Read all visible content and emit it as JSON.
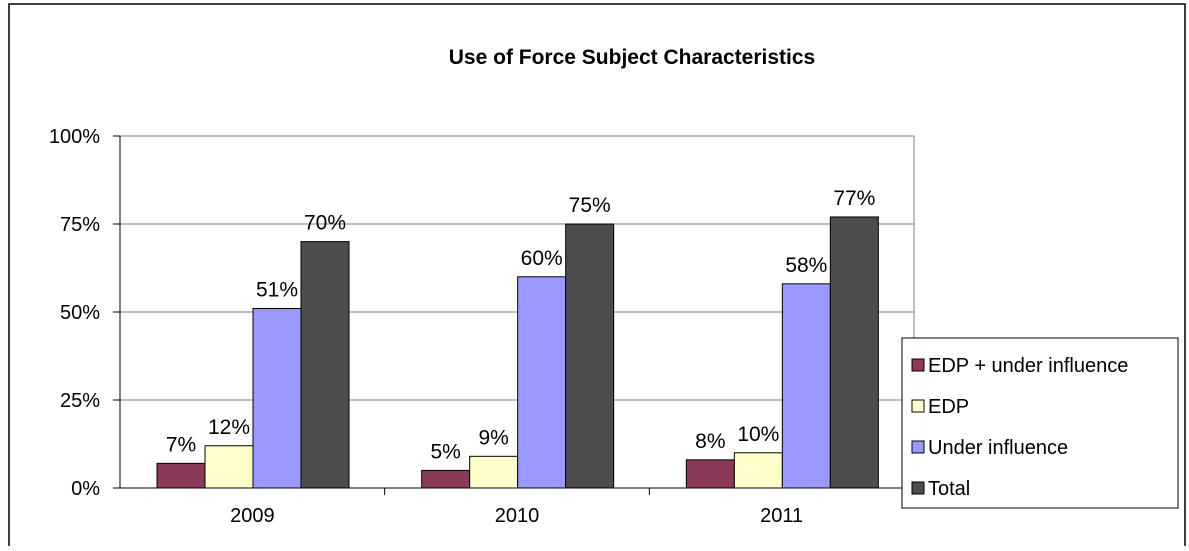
{
  "chart_data": {
    "type": "bar",
    "title": "Use of Force Subject Characteristics",
    "xlabel": "",
    "ylabel": "",
    "categories": [
      "2009",
      "2010",
      "2011"
    ],
    "ylim": [
      0,
      100
    ],
    "yticks": [
      "0%",
      "25%",
      "50%",
      "75%",
      "100%"
    ],
    "grid": true,
    "legend_position": "right",
    "series": [
      {
        "name": "EDP + under influence",
        "color": "#8B3A5A",
        "values": [
          7,
          5,
          8
        ],
        "labels": [
          "7%",
          "5%",
          "8%"
        ]
      },
      {
        "name": "EDP",
        "color": "#FFFFCC",
        "values": [
          12,
          9,
          10
        ],
        "labels": [
          "12%",
          "9%",
          "10%"
        ]
      },
      {
        "name": "Under influence",
        "color": "#9999FF",
        "values": [
          51,
          60,
          58
        ],
        "labels": [
          "51%",
          "60%",
          "58%"
        ]
      },
      {
        "name": "Total",
        "color": "#4D4D4D",
        "values": [
          70,
          75,
          77
        ],
        "labels": [
          "70%",
          "75%",
          "77%"
        ]
      }
    ]
  }
}
